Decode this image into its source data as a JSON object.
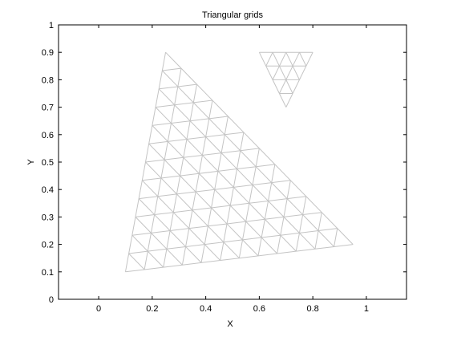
{
  "chart_data": {
    "type": "line",
    "title": "Triangular grids",
    "xlabel": "X",
    "ylabel": "Y",
    "xlim": [
      -0.15,
      1.15
    ],
    "ylim": [
      0,
      1
    ],
    "xticks": [
      0,
      0.2,
      0.4,
      0.6,
      0.8,
      1
    ],
    "xtick_labels": [
      "0",
      "0.2",
      "0.4",
      "0.6",
      "0.8",
      "1"
    ],
    "yticks": [
      0,
      0.1,
      0.2,
      0.3,
      0.4,
      0.5,
      0.6,
      0.7,
      0.8,
      0.9,
      1
    ],
    "ytick_labels": [
      "0",
      "0.1",
      "0.2",
      "0.3",
      "0.4",
      "0.5",
      "0.6",
      "0.7",
      "0.8",
      "0.9",
      "1"
    ],
    "grid": false,
    "mesh_color": "#c4c4c4",
    "axis_color": "#000000",
    "meshes": [
      {
        "vertices": [
          [
            0.1,
            0.1
          ],
          [
            0.95,
            0.2
          ],
          [
            0.25,
            0.9
          ]
        ],
        "divisions": 12
      },
      {
        "vertices": [
          [
            0.6,
            0.9
          ],
          [
            0.8,
            0.9
          ],
          [
            0.7,
            0.7
          ]
        ],
        "divisions": 4
      }
    ]
  }
}
